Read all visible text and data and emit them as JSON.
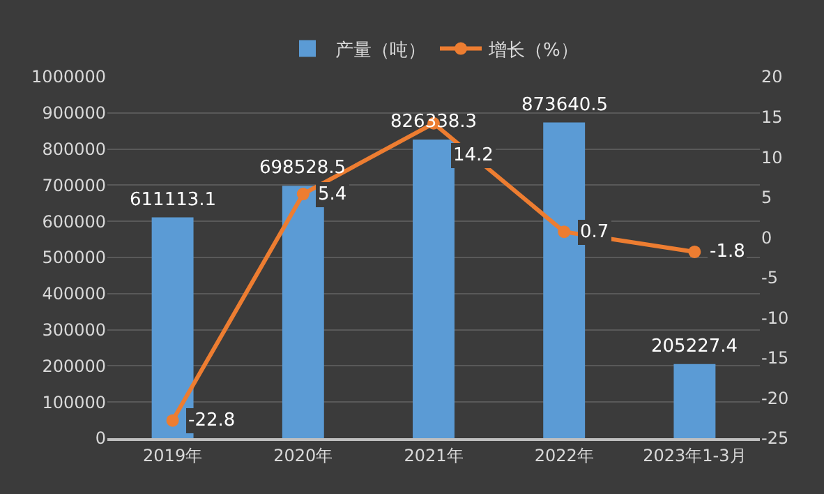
{
  "chart_data": {
    "type": "bar",
    "categories": [
      "2019年",
      "2020年",
      "2021年",
      "2022年",
      "2023年1-3月"
    ],
    "series": [
      {
        "name": "产量（吨）",
        "color": "#5b9bd5",
        "values": [
          611113.1,
          698528.5,
          826338.3,
          873640.5,
          205227.4
        ]
      },
      {
        "name": "增长（%）",
        "type": "line",
        "axis": "y2",
        "color": "#ed7d31",
        "values": [
          -22.8,
          5.4,
          14.2,
          0.7,
          -1.8
        ]
      }
    ],
    "ylim": [
      0,
      1000000
    ],
    "yticks": [
      0,
      100000,
      200000,
      300000,
      400000,
      500000,
      600000,
      700000,
      800000,
      900000,
      1000000
    ],
    "y2lim": [
      -25,
      20
    ],
    "y2ticks": [
      -25,
      -20,
      -15,
      -10,
      -5,
      0,
      5,
      10,
      15,
      20
    ],
    "grid": "y",
    "legend": "top",
    "marker": "circle",
    "line_style": "solid",
    "data_labels": true
  }
}
